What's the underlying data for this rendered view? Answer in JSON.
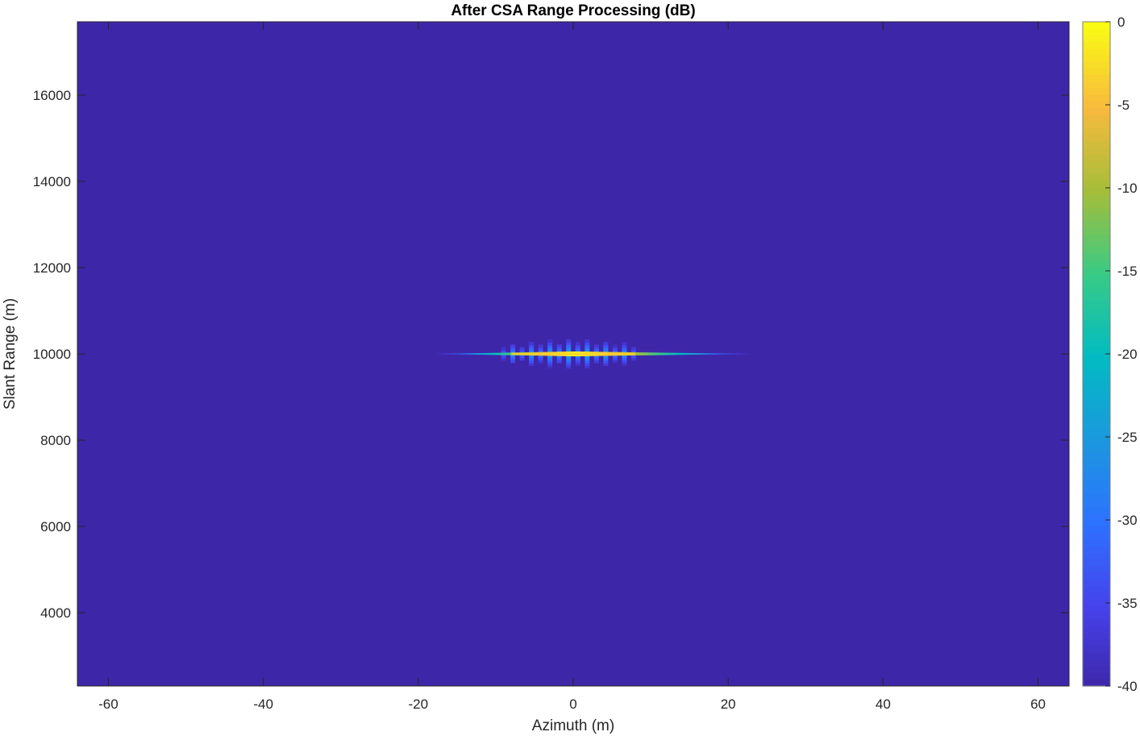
{
  "chart_data": {
    "type": "heatmap",
    "title": "After CSA Range Processing (dB)",
    "xlabel": "Azimuth (m)",
    "ylabel": "Slant Range (m)",
    "xlim": [
      -64,
      64
    ],
    "ylim": [
      2300,
      17700
    ],
    "xticks": [
      -60,
      -40,
      -20,
      0,
      20,
      40,
      60
    ],
    "xtick_labels": [
      "-60",
      "-40",
      "-20",
      "0",
      "20",
      "40",
      "60"
    ],
    "yticks": [
      4000,
      6000,
      8000,
      10000,
      12000,
      14000,
      16000
    ],
    "ytick_labels": [
      "4000",
      "6000",
      "8000",
      "10000",
      "12000",
      "14000",
      "16000"
    ],
    "colorbar": {
      "clim": [
        -40,
        0
      ],
      "ticks": [
        0,
        -5,
        -10,
        -15,
        -20,
        -25,
        -30,
        -35,
        -40
      ],
      "tick_labels": [
        "0",
        "-5",
        "-10",
        "-15",
        "-20",
        "-25",
        "-30",
        "-35",
        "-40"
      ],
      "colormap": "parula",
      "placement": "right"
    },
    "background_value_db": -40,
    "target": {
      "azimuth": 0,
      "slant_range": 10000,
      "peak_db": 0,
      "mainlobe_azimuth_extent": [
        -18,
        23
      ],
      "sidelobe_azimuth_extent": [
        -9,
        9
      ],
      "sidelobe_range_extent": [
        9700,
        10300
      ],
      "sidelobe_azimuth_spacing": 2.4
    },
    "grid": false
  }
}
